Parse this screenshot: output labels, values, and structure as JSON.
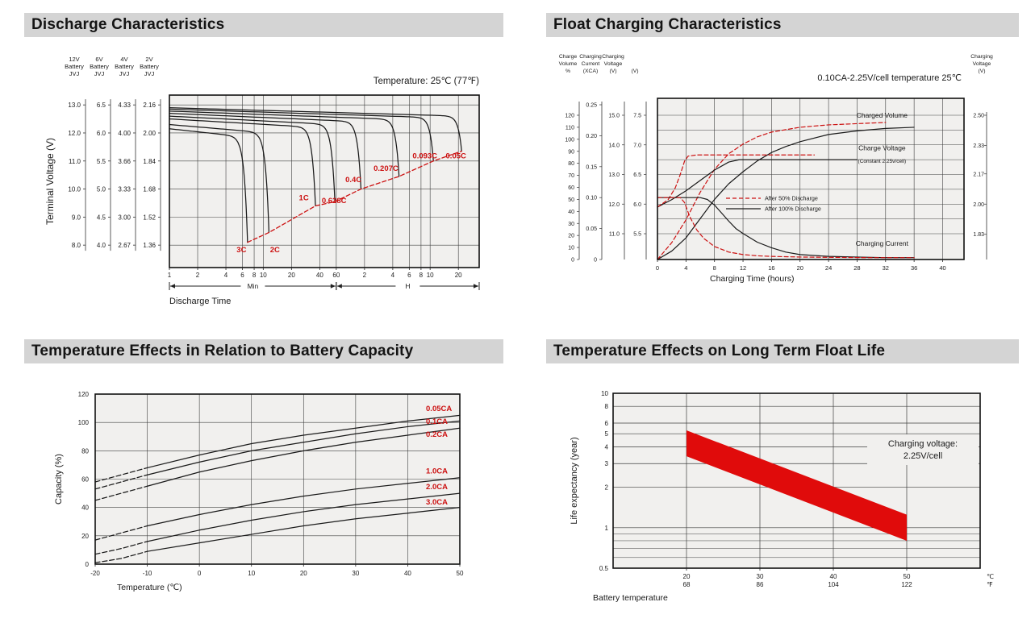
{
  "page": {
    "background": "#ffffff"
  },
  "colors": {
    "header_bg": "#d4d4d4",
    "header_text": "#141414",
    "plot_bg": "#f1f0ee",
    "grid": "#3f3f3f",
    "curve": "#1a1a1a",
    "accent_red": "#cc1111",
    "band_red": "#e00b0b"
  },
  "sections": [
    {
      "title": "Discharge Characteristics"
    },
    {
      "title": "Float Charging Characteristics"
    },
    {
      "title": "Temperature Effects in Relation to Battery Capacity"
    },
    {
      "title": "Temperature Effects on Long Term Float Life"
    }
  ],
  "chart_data": [
    {
      "type": "line",
      "title": "Discharge Characteristics",
      "annotation": "Temperature: 25℃ (77℉)",
      "ylabel": "Terminal Voltage (V)",
      "xlabel": "Discharge Time",
      "x_scale": "log-minutes",
      "x_range_min": [
        1,
        2000
      ],
      "y_range_12v": [
        7.2,
        13.35
      ],
      "voltage_scales": [
        {
          "name": [
            "12V",
            "Battery",
            "JVJ"
          ],
          "ticks": [
            "13.0",
            "12.0",
            "11.0",
            "10.0",
            "9.0",
            "8.0"
          ]
        },
        {
          "name": [
            "6V",
            "Battery",
            "JVJ"
          ],
          "ticks": [
            "6.5",
            "6.0",
            "5.5",
            "5.0",
            "4.5",
            "4.0"
          ]
        },
        {
          "name": [
            "4V",
            "Battery",
            "JVJ"
          ],
          "ticks": [
            "4.33",
            "4.00",
            "3.66",
            "3.33",
            "3.00",
            "2.67"
          ]
        },
        {
          "name": [
            "2V",
            "Battery",
            "JVJ"
          ],
          "ticks": [
            "2.16",
            "2.00",
            "1.84",
            "1.68",
            "1.52",
            "1.36"
          ]
        }
      ],
      "x_ticks": [
        {
          "t": 1,
          "label": "1"
        },
        {
          "t": 2,
          "label": "2"
        },
        {
          "t": 4,
          "label": "4"
        },
        {
          "t": 6,
          "label": "6"
        },
        {
          "t": 8,
          "label": "8"
        },
        {
          "t": 10,
          "label": "10"
        },
        {
          "t": 20,
          "label": "20"
        },
        {
          "t": 40,
          "label": "40"
        },
        {
          "t": 60,
          "label": "60"
        },
        {
          "t": 120,
          "label": "2"
        },
        {
          "t": 240,
          "label": "4"
        },
        {
          "t": 360,
          "label": "6"
        },
        {
          "t": 480,
          "label": "8"
        },
        {
          "t": 600,
          "label": "10"
        },
        {
          "t": 1200,
          "label": "20"
        }
      ],
      "unit_ranges": [
        {
          "label": "Min",
          "from": 1,
          "to": 60
        },
        {
          "label": "H",
          "from": 60,
          "to": 2000
        }
      ],
      "series": [
        {
          "label": "3C",
          "t_end": 6.8,
          "v_start": 12.15,
          "v_cut": 8.1,
          "label_at": [
            5.2,
            7.75
          ]
        },
        {
          "label": "2C",
          "t_end": 11.5,
          "v_start": 12.3,
          "v_cut": 8.45,
          "label_at": [
            11.8,
            7.75
          ]
        },
        {
          "label": "1C",
          "t_end": 36,
          "v_start": 12.5,
          "v_cut": 9.4,
          "label_at": [
            24,
            9.6
          ]
        },
        {
          "label": "0.628C",
          "t_end": 58,
          "v_start": 12.6,
          "v_cut": 9.55,
          "label_at": [
            42,
            9.5
          ]
        },
        {
          "label": "0.4C",
          "t_end": 110,
          "v_start": 12.7,
          "v_cut": 10.0,
          "label_at": [
            75,
            10.25
          ]
        },
        {
          "label": "0.207C",
          "t_end": 280,
          "v_start": 12.78,
          "v_cut": 10.45,
          "label_at": [
            150,
            10.65
          ]
        },
        {
          "label": "0.093C",
          "t_end": 650,
          "v_start": 12.85,
          "v_cut": 11.0,
          "label_at": [
            390,
            11.1
          ]
        },
        {
          "label": "0.05C",
          "t_end": 1300,
          "v_start": 12.9,
          "v_cut": 11.35,
          "label_at": [
            880,
            11.1
          ]
        }
      ],
      "cutoff_line_dashed_red": true
    },
    {
      "type": "line",
      "title": "Float Charging Characteristics",
      "annotation": "0.10CA-2.25V/cell  temperature 25℃",
      "xlabel": "Charging Time (hours)",
      "x_range": [
        0,
        43
      ],
      "x_ticks": [
        0,
        4,
        8,
        12,
        16,
        20,
        24,
        28,
        32,
        36,
        40
      ],
      "left_axes": [
        {
          "header": [
            "Charge",
            "Volume",
            "%"
          ],
          "scale": "volume",
          "ticks": [
            "120",
            "110",
            "100",
            "90",
            "80",
            "70",
            "60",
            "50",
            "40",
            "30",
            "20",
            "10",
            "0"
          ]
        },
        {
          "header": [
            "Charging",
            "Current",
            "(XCA)"
          ],
          "scale": "current",
          "ticks": [
            "0.25",
            "0.20",
            "0.15",
            "0.10",
            "0.05",
            "0"
          ]
        },
        {
          "header": [
            "Charging",
            "Voltage",
            "(V)"
          ],
          "scale": "voltage12",
          "ticks": [
            "15.0",
            "14.0",
            "13.0",
            "12.0",
            "11.0"
          ]
        },
        {
          "header": [
            "",
            "",
            "(V)"
          ],
          "scale": "voltage6",
          "ticks": [
            "7.5",
            "7.0",
            "6.5",
            "6.0",
            "5.5"
          ]
        }
      ],
      "right_axis": {
        "header": [
          "Charging",
          "Voltage",
          "(V)"
        ],
        "ticks": [
          "2.50",
          "2.33",
          "2.17",
          "2.00",
          "1.83"
        ]
      },
      "legend": [
        {
          "label": "After  50% Discharge",
          "style": "dashed",
          "color": "red"
        },
        {
          "label": "After 100% Discharge",
          "style": "solid",
          "color": "black"
        }
      ],
      "labels": [
        {
          "text": "Charged Volume",
          "scale": "volume",
          "at": [
            31.5,
            118
          ]
        },
        {
          "text": "Charge Voltage",
          "scale": "voltage12",
          "at": [
            31.5,
            13.82
          ]
        },
        {
          "text": "(Constant 2.25v/cell)",
          "scale": "voltage12",
          "at": [
            31.5,
            13.4
          ],
          "small": true
        },
        {
          "text": "Charging Current",
          "scale": "volume",
          "at": [
            31.5,
            11.5
          ]
        }
      ],
      "series": [
        {
          "name": "Charged Volume - after 100% discharge",
          "scale": "volume",
          "style": "solid",
          "color": "black",
          "points": [
            [
              0,
              0
            ],
            [
              2,
              7
            ],
            [
              4,
              18
            ],
            [
              6,
              34
            ],
            [
              8,
              50
            ],
            [
              10,
              63
            ],
            [
              12,
              73
            ],
            [
              14,
              82
            ],
            [
              16,
              89
            ],
            [
              18,
              94
            ],
            [
              20,
              98
            ],
            [
              24,
              104
            ],
            [
              28,
              107
            ],
            [
              32,
              109
            ],
            [
              36,
              110
            ]
          ]
        },
        {
          "name": "Charged Volume - after 50% discharge",
          "scale": "volume",
          "style": "dashed",
          "color": "red",
          "points": [
            [
              0,
              0
            ],
            [
              2,
              14
            ],
            [
              4,
              33
            ],
            [
              6,
              56
            ],
            [
              8,
              75
            ],
            [
              10,
              88
            ],
            [
              12,
              96
            ],
            [
              14,
              102
            ],
            [
              16,
              106
            ],
            [
              18,
              108
            ],
            [
              20,
              110
            ],
            [
              24,
              112
            ],
            [
              28,
              113
            ],
            [
              32,
              114
            ]
          ]
        },
        {
          "name": "Charge Voltage - after 100% discharge",
          "scale": "voltage12",
          "style": "solid",
          "color": "black",
          "points": [
            [
              0,
              11.9
            ],
            [
              2,
              12.15
            ],
            [
              4,
              12.45
            ],
            [
              6,
              12.8
            ],
            [
              8,
              13.15
            ],
            [
              10,
              13.42
            ],
            [
              11.5,
              13.5
            ],
            [
              28,
              13.5
            ]
          ]
        },
        {
          "name": "Charge Voltage - after 50% discharge",
          "scale": "voltage12",
          "style": "dashed",
          "color": "red",
          "points": [
            [
              0,
              11.9
            ],
            [
              1.5,
              12.15
            ],
            [
              2.5,
              12.55
            ],
            [
              3.2,
              13.0
            ],
            [
              3.8,
              13.45
            ],
            [
              4.3,
              13.62
            ],
            [
              5.5,
              13.66
            ],
            [
              22,
              13.66
            ]
          ]
        },
        {
          "name": "Charging Current - after 100% discharge",
          "scale": "current",
          "style": "solid",
          "color": "black",
          "points": [
            [
              0,
              0.1
            ],
            [
              6,
              0.1
            ],
            [
              7,
              0.097
            ],
            [
              8,
              0.088
            ],
            [
              9,
              0.075
            ],
            [
              10,
              0.062
            ],
            [
              11,
              0.05
            ],
            [
              12,
              0.042
            ],
            [
              14,
              0.028
            ],
            [
              16,
              0.019
            ],
            [
              18,
              0.012
            ],
            [
              20,
              0.008
            ],
            [
              24,
              0.005
            ],
            [
              28,
              0.004
            ],
            [
              32,
              0.003
            ],
            [
              36,
              0.003
            ]
          ]
        },
        {
          "name": "Charging Current - after 50% discharge",
          "scale": "current",
          "style": "dashed",
          "color": "red",
          "points": [
            [
              0,
              0.1
            ],
            [
              3.2,
              0.1
            ],
            [
              3.8,
              0.092
            ],
            [
              4.5,
              0.07
            ],
            [
              5.5,
              0.048
            ],
            [
              6.5,
              0.034
            ],
            [
              8,
              0.021
            ],
            [
              10,
              0.012
            ],
            [
              12,
              0.008
            ],
            [
              14,
              0.006
            ],
            [
              16,
              0.005
            ],
            [
              20,
              0.004
            ],
            [
              24,
              0.0035
            ],
            [
              30,
              0.003
            ],
            [
              36,
              0.003
            ]
          ]
        }
      ]
    },
    {
      "type": "line",
      "title": "Temperature Effects in Relation to Battery Capacity",
      "xlabel": "Temperature (℃)",
      "ylabel": "Capacity (%)",
      "x_ticks": [
        -20,
        -10,
        0,
        10,
        20,
        30,
        40,
        50
      ],
      "y_ticks": [
        0,
        20,
        40,
        60,
        80,
        100,
        120
      ],
      "x_range": [
        -20,
        50
      ],
      "y_range": [
        0,
        120
      ],
      "series": [
        {
          "label": "0.05CA",
          "label_at": [
            43.5,
            108
          ],
          "points": [
            [
              -20,
              58
            ],
            [
              -15,
              63
            ],
            [
              -10,
              68
            ],
            [
              0,
              77
            ],
            [
              10,
              85
            ],
            [
              20,
              91
            ],
            [
              30,
              96
            ],
            [
              40,
              101
            ],
            [
              50,
              105
            ]
          ]
        },
        {
          "label": "0.1CA",
          "label_at": [
            43.5,
            99
          ],
          "points": [
            [
              -20,
              53
            ],
            [
              -15,
              58
            ],
            [
              -10,
              63
            ],
            [
              0,
              72
            ],
            [
              10,
              80
            ],
            [
              20,
              86
            ],
            [
              30,
              92
            ],
            [
              40,
              97
            ],
            [
              50,
              101
            ]
          ]
        },
        {
          "label": "0.2CA",
          "label_at": [
            43.5,
            90
          ],
          "points": [
            [
              -20,
              45
            ],
            [
              -15,
              50
            ],
            [
              -10,
              55
            ],
            [
              0,
              65
            ],
            [
              10,
              73
            ],
            [
              20,
              80
            ],
            [
              30,
              86
            ],
            [
              40,
              91
            ],
            [
              50,
              96
            ]
          ]
        },
        {
          "label": "1.0CA",
          "label_at": [
            43.5,
            64
          ],
          "points": [
            [
              -20,
              17
            ],
            [
              -15,
              22
            ],
            [
              -10,
              27
            ],
            [
              0,
              35
            ],
            [
              10,
              42
            ],
            [
              20,
              48
            ],
            [
              30,
              53
            ],
            [
              40,
              57
            ],
            [
              50,
              61
            ]
          ]
        },
        {
          "label": "2.0CA",
          "label_at": [
            43.5,
            53
          ],
          "points": [
            [
              -20,
              7
            ],
            [
              -15,
              11
            ],
            [
              -10,
              16
            ],
            [
              0,
              24
            ],
            [
              10,
              31
            ],
            [
              20,
              37
            ],
            [
              30,
              42
            ],
            [
              40,
              46
            ],
            [
              50,
              50
            ]
          ]
        },
        {
          "label": "3.0CA",
          "label_at": [
            43.5,
            42
          ],
          "points": [
            [
              -20,
              1
            ],
            [
              -15,
              4
            ],
            [
              -10,
              9
            ],
            [
              0,
              15
            ],
            [
              10,
              21
            ],
            [
              20,
              27
            ],
            [
              30,
              32
            ],
            [
              40,
              36
            ],
            [
              50,
              40
            ]
          ]
        }
      ],
      "dashed_below_c": -10
    },
    {
      "type": "area",
      "title": "Temperature Effects on Long Term Float Life",
      "xlabel": "Battery temperature",
      "ylabel": "Life expectancy (year)",
      "y_scale": "log",
      "y_ticks": [
        10,
        8,
        6,
        5,
        4,
        3,
        2,
        1,
        0.5
      ],
      "y_minor_ticks": [
        0.9,
        0.8,
        0.7,
        0.6
      ],
      "x_range": [
        10,
        60
      ],
      "y_range": [
        0.5,
        10
      ],
      "x_ticks": [
        {
          "c": "20",
          "f": "68"
        },
        {
          "c": "30",
          "f": "86"
        },
        {
          "c": "40",
          "f": "104"
        },
        {
          "c": "50",
          "f": "122"
        }
      ],
      "x_unit_labels": {
        "c": "℃",
        "f": "℉"
      },
      "band": {
        "x": [
          20,
          50
        ],
        "top": [
          5.3,
          1.25
        ],
        "bottom": [
          3.4,
          0.8
        ]
      },
      "annotation": [
        "Charging voltage:",
        "2.25V/cell"
      ]
    }
  ]
}
